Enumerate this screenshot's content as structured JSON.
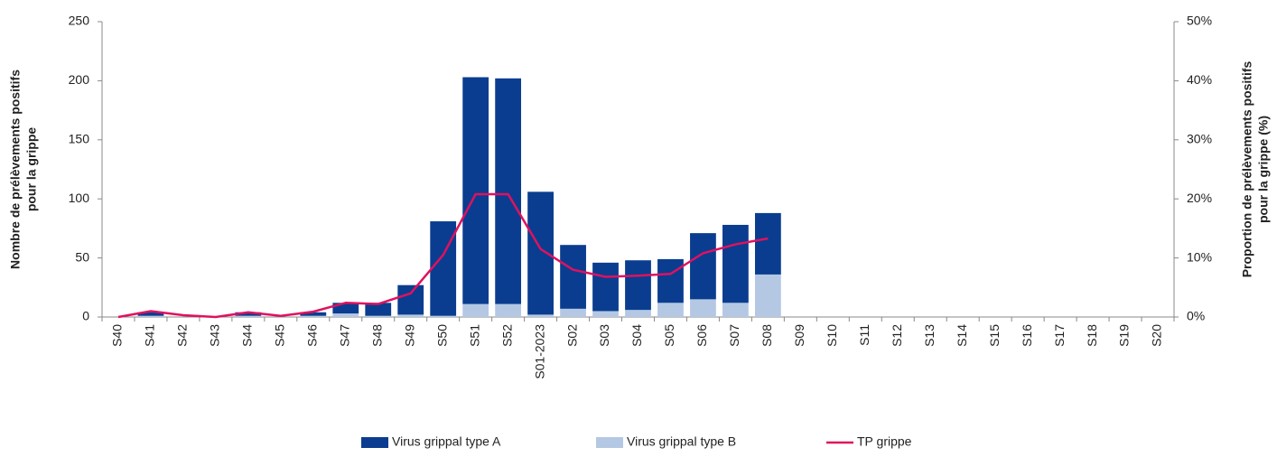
{
  "chart_data": {
    "type": "bar-line",
    "ylabel": [
      "Nombre de prélèvements positifs",
      "pour la grippe"
    ],
    "y2label": [
      "Proportion de prélèvements positifs",
      "pour la grippe (%)"
    ],
    "categories": [
      "S40",
      "S41",
      "S42",
      "S43",
      "S44",
      "S45",
      "S46",
      "S47",
      "S48",
      "S49",
      "S50",
      "S51",
      "S52",
      "S01-2023",
      "S02",
      "S03",
      "S04",
      "S05",
      "S06",
      "S07",
      "S08",
      "S09",
      "S10",
      "S11",
      "S12",
      "S13",
      "S14",
      "S15",
      "S16",
      "S17",
      "S18",
      "S19",
      "S20"
    ],
    "series": [
      {
        "name": "Virus grippal type A",
        "type": "bar",
        "color": "#0a3d8f",
        "values": [
          0,
          3,
          0,
          0,
          3,
          0,
          3,
          9,
          11,
          25,
          80,
          192,
          191,
          104,
          54,
          41,
          42,
          37,
          56,
          66,
          52,
          null,
          null,
          null,
          null,
          null,
          null,
          null,
          null,
          null,
          null,
          null,
          null
        ]
      },
      {
        "name": "Virus grippal type B",
        "type": "bar",
        "color": "#b4c8e4",
        "values": [
          0,
          1,
          0,
          0,
          1,
          0,
          1,
          3,
          1,
          2,
          1,
          11,
          11,
          2,
          7,
          5,
          6,
          12,
          15,
          12,
          36,
          null,
          null,
          null,
          null,
          null,
          null,
          null,
          null,
          null,
          null,
          null,
          null
        ]
      },
      {
        "name": "TP grippe",
        "type": "line",
        "axis": "y2",
        "color": "#e0115f",
        "values": [
          0,
          1,
          0.3,
          0,
          0.8,
          0.2,
          0.9,
          2.4,
          2.2,
          4,
          10.5,
          20.8,
          20.8,
          11.5,
          8,
          6.8,
          7,
          7.3,
          10.8,
          12.3,
          13.3,
          null,
          null,
          null,
          null,
          null,
          null,
          null,
          null,
          null,
          null,
          null,
          null
        ]
      }
    ],
    "ylim": [
      0,
      250
    ],
    "yticks": [
      0,
      50,
      100,
      150,
      200,
      250
    ],
    "y2lim": [
      0,
      50
    ],
    "y2ticks": [
      {
        "value": 0,
        "label": "0%"
      },
      {
        "value": 10,
        "label": "10%"
      },
      {
        "value": 20,
        "label": "20%"
      },
      {
        "value": 30,
        "label": "30%"
      },
      {
        "value": 40,
        "label": "40%"
      },
      {
        "value": 50,
        "label": "50%"
      }
    ]
  }
}
